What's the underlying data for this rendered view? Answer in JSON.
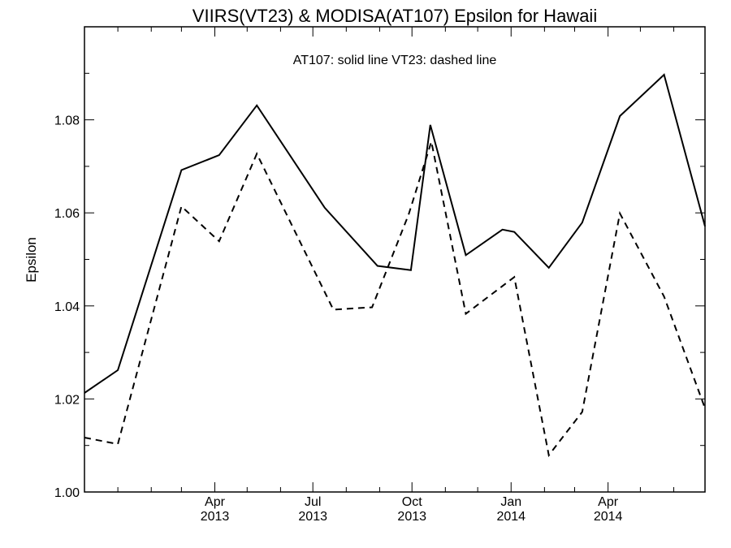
{
  "chart_data": {
    "type": "line",
    "title": "VIIRS(VT23) & MODISA(AT107)  Epsilon for Hawaii",
    "annotation": "AT107: solid line   VT23: dashed line",
    "xlabel": "",
    "ylabel": "Epsilon",
    "xlim": [
      "2012-12-01",
      "2014-06-30"
    ],
    "ylim": [
      1.0,
      1.1
    ],
    "yticks": [
      "1.00",
      "1.02",
      "1.04",
      "1.06",
      "1.08"
    ],
    "xticks": [
      {
        "date": "2013-04-01",
        "month": "Apr",
        "year": "2013"
      },
      {
        "date": "2013-07-01",
        "month": "Jul",
        "year": "2013"
      },
      {
        "date": "2013-10-01",
        "month": "Oct",
        "year": "2013"
      },
      {
        "date": "2014-01-01",
        "month": "Jan",
        "year": "2014"
      },
      {
        "date": "2014-04-01",
        "month": "Apr",
        "year": "2014"
      }
    ],
    "series": [
      {
        "name": "AT107",
        "style": "solid",
        "color": "#000000",
        "x": [
          "2012-12-01",
          "2013-01-01",
          "2013-03-01",
          "2013-04-05",
          "2013-05-10",
          "2013-07-12",
          "2013-08-30",
          "2013-09-30",
          "2013-10-18",
          "2013-11-20",
          "2013-12-24",
          "2014-01-04",
          "2014-02-05",
          "2014-03-08",
          "2014-04-12",
          "2014-05-23",
          "2014-06-30"
        ],
        "values": [
          1.0213,
          1.0262,
          1.0692,
          1.0724,
          1.0831,
          1.0611,
          1.0486,
          1.0477,
          1.0789,
          1.0509,
          1.0564,
          1.0559,
          1.0482,
          1.0579,
          1.0808,
          1.0897,
          1.0571
        ]
      },
      {
        "name": "VT23",
        "style": "dashed",
        "color": "#000000",
        "x": [
          "2012-12-01",
          "2013-01-01",
          "2013-03-01",
          "2013-04-05",
          "2013-05-10",
          "2013-07-20",
          "2013-08-25",
          "2013-09-28",
          "2013-10-19",
          "2013-11-20",
          "2014-01-04",
          "2014-02-05",
          "2014-03-08",
          "2014-04-12",
          "2014-05-23",
          "2014-06-30"
        ],
        "values": [
          1.0117,
          1.0103,
          1.0614,
          1.0539,
          1.0727,
          1.0392,
          1.0397,
          1.0597,
          1.0753,
          1.0383,
          1.0462,
          1.0079,
          1.0172,
          1.0599,
          1.042,
          1.018
        ]
      }
    ]
  }
}
